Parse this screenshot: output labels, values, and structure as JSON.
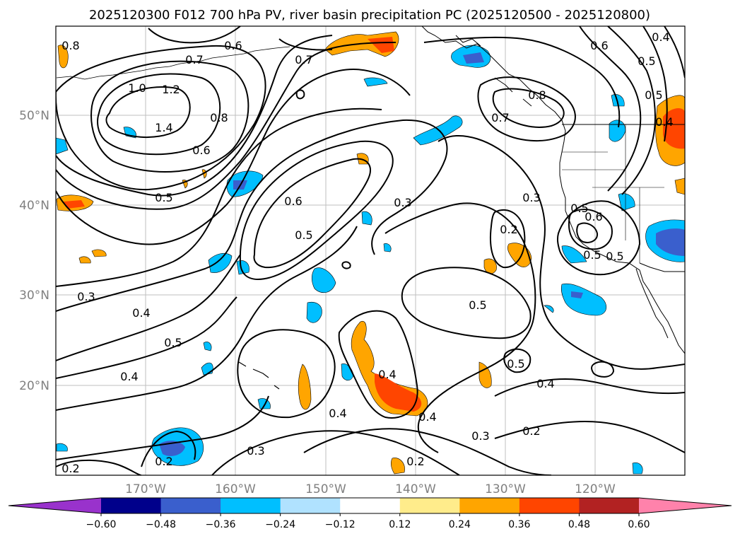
{
  "title": "2025120300 F012 700 hPa PV, river basin precipitation PC (2025120500 - 2025120800)",
  "map": {
    "lat_labels": [
      "50°N",
      "40°N",
      "30°N",
      "20°N"
    ],
    "lon_labels": [
      "170°W",
      "160°W",
      "150°W",
      "140°W",
      "130°W",
      "120°W"
    ],
    "contour_labels": [
      {
        "text": "0.8",
        "name": "contour-label-0-8-nw"
      },
      {
        "text": "0.7",
        "name": "contour-label-0-7-north"
      },
      {
        "text": "0.6",
        "name": "contour-label-0-6-north"
      },
      {
        "text": "0.7",
        "name": "contour-label-0-7-north-2"
      },
      {
        "text": "1.0",
        "name": "contour-label-1-0"
      },
      {
        "text": "1.2",
        "name": "contour-label-1-2"
      },
      {
        "text": "1.4",
        "name": "contour-label-1-4"
      },
      {
        "text": "0.8",
        "name": "contour-label-0-8-center"
      },
      {
        "text": "0.6",
        "name": "contour-label-0-6-west"
      },
      {
        "text": "0.5",
        "name": "contour-label-0-5-west"
      },
      {
        "text": "0.6",
        "name": "contour-label-0-6-ridge"
      },
      {
        "text": "0.5",
        "name": "contour-label-0-5-ridge"
      },
      {
        "text": "0.3",
        "name": "contour-label-0-3-east"
      },
      {
        "text": "0.6",
        "name": "contour-label-0-6-ne"
      },
      {
        "text": "0.5",
        "name": "contour-label-0-5-ne"
      },
      {
        "text": "0.4",
        "name": "contour-label-0-4-ne"
      },
      {
        "text": "0.5",
        "name": "contour-label-0-5-coast"
      },
      {
        "text": "0.3",
        "name": "contour-label-0-3-coast"
      },
      {
        "text": "0.2",
        "name": "contour-label-0-2-coast"
      },
      {
        "text": "0.8",
        "name": "contour-label-0-8-bc"
      },
      {
        "text": "0.7",
        "name": "contour-label-0-7-bc"
      },
      {
        "text": "0.6",
        "name": "contour-label-0-6-gulf"
      },
      {
        "text": "0.5",
        "name": "contour-label-0-5-rockies"
      },
      {
        "text": "0.4",
        "name": "contour-label-0-4-rockies"
      },
      {
        "text": "0.5",
        "name": "contour-label-0-5-sw"
      },
      {
        "text": "0.3",
        "name": "contour-label-0-3-sw"
      },
      {
        "text": "0.4",
        "name": "contour-label-0-4-sw"
      },
      {
        "text": "0.5",
        "name": "contour-label-0-5-south"
      },
      {
        "text": "0.4",
        "name": "contour-label-0-4-south"
      },
      {
        "text": "0.4",
        "name": "contour-label-0-4-hawaii"
      },
      {
        "text": "0.4",
        "name": "contour-label-0-4-south-2"
      },
      {
        "text": "0.4",
        "name": "contour-label-0-4-south-3"
      },
      {
        "text": "0.3",
        "name": "contour-label-0-3-south"
      },
      {
        "text": "0.3",
        "name": "contour-label-0-3-south-2"
      },
      {
        "text": "0.2",
        "name": "contour-label-0-2-south"
      },
      {
        "text": "0.2",
        "name": "contour-label-0-2-sw-bottom"
      },
      {
        "text": "0.2",
        "name": "contour-label-0-2-south-2"
      },
      {
        "text": "0.5",
        "name": "contour-label-0-5-east"
      },
      {
        "text": "0.4",
        "name": "contour-label-0-4-east"
      },
      {
        "text": "0.2",
        "name": "contour-label-0-2-east"
      },
      {
        "text": "0.5",
        "name": "contour-label-0-5-cal"
      },
      {
        "text": "0.5",
        "name": "contour-label-0-5-bottom"
      }
    ]
  },
  "colorbar": {
    "ticks": [
      "−0.60",
      "−0.48",
      "−0.36",
      "−0.24",
      "−0.12",
      "0.12",
      "0.24",
      "0.36",
      "0.48",
      "0.60"
    ],
    "bins": [
      {
        "label": "< -0.60",
        "color": "#9932CC"
      },
      {
        "label": "-0.60 – -0.48",
        "color": "#00008B"
      },
      {
        "label": "-0.48 – -0.36",
        "color": "#3A5FCD"
      },
      {
        "label": "-0.36 – -0.24",
        "color": "#00BFFF"
      },
      {
        "label": "-0.24 – -0.12",
        "color": "#B0E2FF"
      },
      {
        "label": "-0.12 – 0.12",
        "color": "#FFFFFF"
      },
      {
        "label": "0.12 – 0.24",
        "color": "#FFEC8B"
      },
      {
        "label": "0.24 – 0.36",
        "color": "#FFA500"
      },
      {
        "label": "0.36 – 0.48",
        "color": "#FF4500"
      },
      {
        "label": "0.48 – 0.60",
        "color": "#B22222"
      },
      {
        "label": "> 0.60",
        "color": "#FF82AB"
      }
    ]
  },
  "colors": {
    "grid": "#bfbfbf",
    "contour": "#000000",
    "coast": "#000000"
  }
}
